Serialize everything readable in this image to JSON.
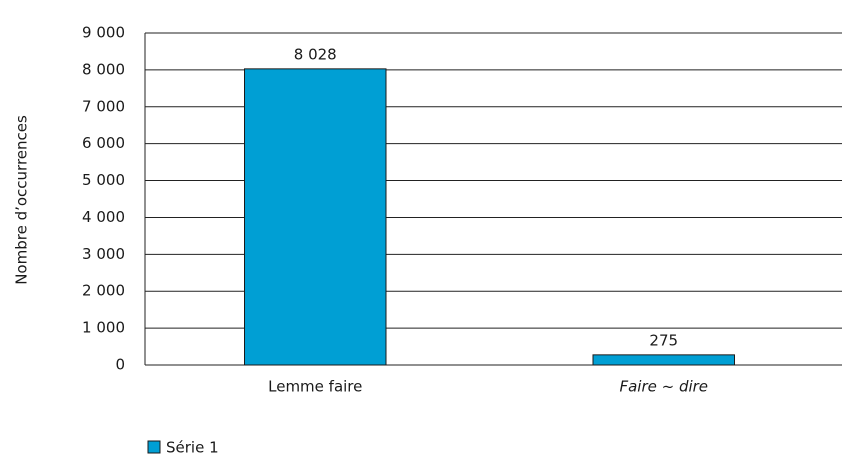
{
  "chart_data": {
    "type": "bar",
    "y_label": "Nombre d’occurrences",
    "categories": [
      "Lemme faire",
      "Faire ~ dire"
    ],
    "series": [
      {
        "name": "Série 1",
        "color": "#009fd4",
        "values": [
          8028,
          275
        ],
        "value_labels": [
          "8 028",
          "275"
        ]
      }
    ],
    "ylim": [
      0,
      9000
    ],
    "yticks": [
      0,
      {
        "value": 1000,
        "label": "1 000"
      },
      {
        "value": 2000,
        "label": "2 000"
      },
      {
        "value": 3000,
        "label": "3 000"
      },
      {
        "value": 4000,
        "label": "4 000"
      },
      {
        "value": 5000,
        "label": "5 000"
      },
      {
        "value": 6000,
        "label": "6 000"
      },
      {
        "value": 7000,
        "label": "7 000"
      },
      {
        "value": 8000,
        "label": "8 000"
      },
      {
        "value": 9000,
        "label": "9 000"
      }
    ],
    "grid": true
  }
}
